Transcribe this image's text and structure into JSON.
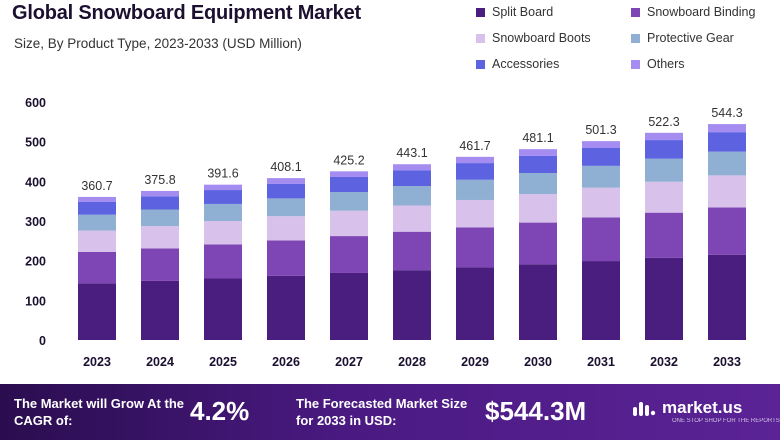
{
  "chart_data": {
    "type": "bar",
    "stacked": true,
    "title": "Global Snowboard Equipment Market",
    "subtitle": "Size, By Product Type, 2023-2033 (USD Million)",
    "categories": [
      "2023",
      "2024",
      "2025",
      "2026",
      "2027",
      "2028",
      "2029",
      "2030",
      "2031",
      "2032",
      "2033"
    ],
    "totals": [
      "360.7",
      "375.8",
      "391.6",
      "408.1",
      "425.2",
      "443.1",
      "461.7",
      "481.1",
      "501.3",
      "522.3",
      "544.3"
    ],
    "series": [
      {
        "name": "Split Board",
        "color": "#4a1e7e",
        "values": [
          143.0,
          149.0,
          155.0,
          162.0,
          169.0,
          176.0,
          183.0,
          191.0,
          199.0,
          207.0,
          215.0
        ]
      },
      {
        "name": "Snowboard Binding",
        "color": "#7e45b4",
        "values": [
          79.0,
          82.0,
          86.0,
          89.0,
          93.0,
          97.0,
          101.0,
          105.0,
          110.0,
          114.0,
          119.0
        ]
      },
      {
        "name": "Snowboard Boots",
        "color": "#d8c2ec",
        "values": [
          54.0,
          56.0,
          59.0,
          61.0,
          64.0,
          66.0,
          69.0,
          72.0,
          75.0,
          78.0,
          81.0
        ]
      },
      {
        "name": "Protective Gear",
        "color": "#8fb0d2",
        "values": [
          40.0,
          42.0,
          43.0,
          45.0,
          47.0,
          49.0,
          51.0,
          53.0,
          55.0,
          58.0,
          60.0
        ]
      },
      {
        "name": "Accessories",
        "color": "#5c62e0",
        "values": [
          32.0,
          33.0,
          35.0,
          37.0,
          38.0,
          40.0,
          42.0,
          43.0,
          45.0,
          47.0,
          49.0
        ]
      },
      {
        "name": "Others",
        "color": "#a48cf0",
        "values": [
          12.7,
          13.8,
          13.6,
          14.1,
          14.2,
          15.1,
          15.7,
          17.1,
          17.3,
          18.3,
          20.3
        ]
      }
    ],
    "ylim": [
      0,
      600
    ],
    "yticks": [
      "0",
      "100",
      "200",
      "300",
      "400",
      "500",
      "600"
    ],
    "xlabel": "",
    "ylabel": "",
    "grid": false,
    "legend_position": "top-right"
  },
  "footer": {
    "cagr_label": "The Market will Grow At the CAGR of:",
    "cagr_value": "4.2%",
    "size_label": "The Forecasted Market Size for 2033 in USD:",
    "size_value": "$544.3M",
    "logo_text": "market.us",
    "logo_tagline": "ONE STOP SHOP FOR THE REPORTS",
    "logo_icon": "market-us-logo-icon"
  }
}
